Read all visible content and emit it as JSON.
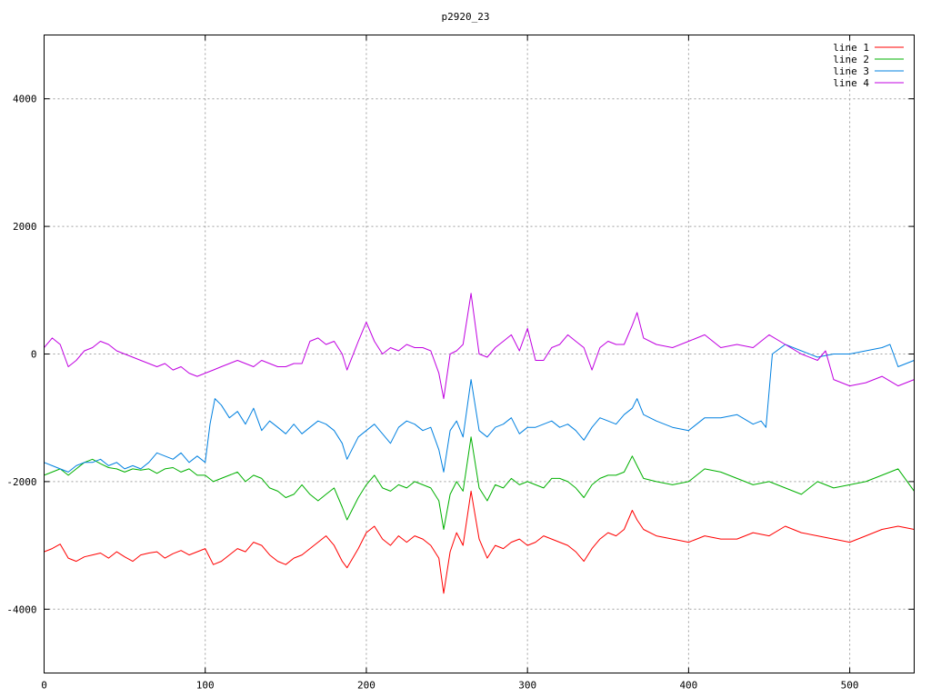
{
  "chart_data": {
    "type": "line",
    "title": "p2920_23",
    "xlabel": "",
    "ylabel": "",
    "xlim": [
      0,
      540
    ],
    "ylim": [
      -5000,
      5000
    ],
    "xticks": [
      0,
      100,
      200,
      300,
      400,
      500
    ],
    "yticks": [
      -4000,
      -2000,
      0,
      2000,
      4000
    ],
    "ytick_labels": [
      "-4000",
      "-2000",
      "0",
      "2000",
      "4000"
    ],
    "grid": true,
    "legend_position": "top-right",
    "series": [
      {
        "name": "line 1",
        "color": "#ff0000",
        "x": [
          0,
          5,
          10,
          15,
          20,
          25,
          30,
          35,
          40,
          45,
          50,
          55,
          60,
          65,
          70,
          75,
          80,
          85,
          90,
          95,
          100,
          105,
          110,
          115,
          120,
          125,
          130,
          135,
          140,
          145,
          150,
          155,
          160,
          165,
          170,
          175,
          180,
          185,
          188,
          195,
          200,
          205,
          210,
          215,
          220,
          225,
          230,
          235,
          240,
          245,
          248,
          252,
          256,
          260,
          265,
          270,
          275,
          280,
          285,
          290,
          295,
          300,
          305,
          310,
          315,
          320,
          325,
          330,
          335,
          340,
          345,
          350,
          355,
          360,
          365,
          368,
          372,
          380,
          390,
          400,
          410,
          420,
          430,
          440,
          450,
          460,
          470,
          480,
          490,
          500,
          510,
          520,
          530,
          540
        ],
        "values": [
          -3100,
          -3050,
          -2980,
          -3200,
          -3250,
          -3180,
          -3150,
          -3120,
          -3200,
          -3100,
          -3180,
          -3250,
          -3150,
          -3120,
          -3100,
          -3200,
          -3130,
          -3080,
          -3150,
          -3100,
          -3050,
          -3300,
          -3250,
          -3150,
          -3050,
          -3100,
          -2950,
          -3000,
          -3150,
          -3250,
          -3300,
          -3200,
          -3150,
          -3050,
          -2950,
          -2850,
          -3000,
          -3250,
          -3350,
          -3050,
          -2800,
          -2700,
          -2900,
          -3000,
          -2850,
          -2950,
          -2850,
          -2900,
          -3000,
          -3200,
          -3750,
          -3100,
          -2800,
          -3000,
          -2150,
          -2900,
          -3200,
          -3000,
          -3050,
          -2950,
          -2900,
          -3000,
          -2950,
          -2850,
          -2900,
          -2950,
          -3000,
          -3100,
          -3250,
          -3050,
          -2900,
          -2800,
          -2850,
          -2750,
          -2450,
          -2600,
          -2750,
          -2850,
          -2900,
          -2950,
          -2850,
          -2900,
          -2900,
          -2800,
          -2850,
          -2700,
          -2800,
          -2850,
          -2900,
          -2950,
          -2850,
          -2750,
          -2700,
          -2750
        ]
      },
      {
        "name": "line 2",
        "color": "#00b000",
        "x": [
          0,
          5,
          10,
          15,
          20,
          25,
          30,
          35,
          40,
          45,
          50,
          55,
          60,
          65,
          70,
          75,
          80,
          85,
          90,
          95,
          100,
          105,
          110,
          115,
          120,
          125,
          130,
          135,
          140,
          145,
          150,
          155,
          160,
          165,
          170,
          175,
          180,
          185,
          188,
          195,
          200,
          205,
          210,
          215,
          220,
          225,
          230,
          235,
          240,
          245,
          248,
          252,
          256,
          260,
          265,
          270,
          275,
          280,
          285,
          290,
          295,
          300,
          305,
          310,
          315,
          320,
          325,
          330,
          335,
          340,
          345,
          350,
          355,
          360,
          365,
          368,
          372,
          380,
          390,
          400,
          410,
          420,
          430,
          440,
          450,
          460,
          470,
          480,
          490,
          500,
          510,
          520,
          530,
          540
        ],
        "values": [
          -1900,
          -1850,
          -1800,
          -1900,
          -1800,
          -1700,
          -1650,
          -1720,
          -1780,
          -1800,
          -1850,
          -1800,
          -1820,
          -1800,
          -1870,
          -1800,
          -1780,
          -1850,
          -1800,
          -1900,
          -1900,
          -2000,
          -1950,
          -1900,
          -1850,
          -2000,
          -1900,
          -1950,
          -2100,
          -2150,
          -2250,
          -2200,
          -2050,
          -2200,
          -2300,
          -2200,
          -2100,
          -2400,
          -2600,
          -2250,
          -2050,
          -1900,
          -2100,
          -2150,
          -2050,
          -2100,
          -2000,
          -2050,
          -2100,
          -2300,
          -2750,
          -2200,
          -2000,
          -2150,
          -1300,
          -2100,
          -2300,
          -2050,
          -2100,
          -1950,
          -2050,
          -2000,
          -2050,
          -2100,
          -1950,
          -1950,
          -2000,
          -2100,
          -2250,
          -2050,
          -1950,
          -1900,
          -1900,
          -1850,
          -1600,
          -1750,
          -1950,
          -2000,
          -2050,
          -2000,
          -1800,
          -1850,
          -1950,
          -2050,
          -2000,
          -2100,
          -2200,
          -2000,
          -2100,
          -2050,
          -2000,
          -1900,
          -1800,
          -2150
        ]
      },
      {
        "name": "line 3",
        "color": "#0080e0",
        "x": [
          0,
          5,
          10,
          15,
          20,
          25,
          30,
          35,
          40,
          45,
          50,
          55,
          60,
          65,
          70,
          75,
          80,
          85,
          90,
          95,
          100,
          103,
          106,
          110,
          115,
          120,
          125,
          130,
          135,
          140,
          145,
          150,
          155,
          160,
          165,
          170,
          175,
          180,
          185,
          188,
          195,
          200,
          205,
          210,
          215,
          220,
          225,
          230,
          235,
          240,
          245,
          248,
          252,
          256,
          260,
          265,
          270,
          275,
          280,
          285,
          290,
          295,
          300,
          305,
          310,
          315,
          320,
          325,
          330,
          335,
          340,
          345,
          350,
          355,
          360,
          365,
          368,
          372,
          380,
          390,
          400,
          410,
          420,
          430,
          440,
          445,
          448,
          452,
          460,
          470,
          480,
          490,
          500,
          510,
          520,
          525,
          530,
          540
        ],
        "values": [
          -1700,
          -1750,
          -1800,
          -1850,
          -1750,
          -1700,
          -1700,
          -1650,
          -1750,
          -1700,
          -1800,
          -1750,
          -1800,
          -1700,
          -1550,
          -1600,
          -1650,
          -1550,
          -1700,
          -1600,
          -1700,
          -1100,
          -700,
          -800,
          -1000,
          -900,
          -1100,
          -850,
          -1200,
          -1050,
          -1150,
          -1250,
          -1100,
          -1250,
          -1150,
          -1050,
          -1100,
          -1200,
          -1400,
          -1650,
          -1300,
          -1200,
          -1100,
          -1250,
          -1400,
          -1150,
          -1050,
          -1100,
          -1200,
          -1150,
          -1500,
          -1850,
          -1200,
          -1050,
          -1300,
          -400,
          -1200,
          -1300,
          -1150,
          -1100,
          -1000,
          -1250,
          -1150,
          -1150,
          -1100,
          -1050,
          -1150,
          -1100,
          -1200,
          -1350,
          -1150,
          -1000,
          -1050,
          -1100,
          -950,
          -850,
          -700,
          -950,
          -1050,
          -1150,
          -1200,
          -1000,
          -1000,
          -950,
          -1100,
          -1050,
          -1150,
          0,
          150,
          50,
          -50,
          0,
          0,
          50,
          100,
          150,
          -200,
          -100
        ]
      },
      {
        "name": "line 4",
        "color": "#c000e0",
        "x": [
          0,
          5,
          10,
          15,
          20,
          25,
          30,
          35,
          40,
          45,
          50,
          55,
          60,
          65,
          70,
          75,
          80,
          85,
          90,
          95,
          100,
          105,
          110,
          115,
          120,
          125,
          130,
          135,
          140,
          145,
          150,
          155,
          160,
          165,
          170,
          175,
          180,
          185,
          188,
          195,
          200,
          205,
          210,
          215,
          220,
          225,
          230,
          235,
          240,
          245,
          248,
          252,
          256,
          260,
          265,
          270,
          275,
          280,
          285,
          290,
          295,
          300,
          305,
          310,
          315,
          320,
          325,
          330,
          335,
          340,
          345,
          350,
          355,
          360,
          365,
          368,
          372,
          380,
          390,
          400,
          410,
          420,
          430,
          440,
          450,
          460,
          470,
          480,
          485,
          490,
          500,
          510,
          520,
          530,
          540
        ],
        "values": [
          100,
          250,
          150,
          -200,
          -100,
          50,
          100,
          200,
          150,
          50,
          0,
          -50,
          -100,
          -150,
          -200,
          -150,
          -250,
          -200,
          -300,
          -350,
          -300,
          -250,
          -200,
          -150,
          -100,
          -150,
          -200,
          -100,
          -150,
          -200,
          -200,
          -150,
          -150,
          200,
          250,
          150,
          200,
          0,
          -250,
          200,
          500,
          200,
          0,
          100,
          50,
          150,
          100,
          100,
          50,
          -300,
          -700,
          0,
          50,
          150,
          950,
          0,
          -50,
          100,
          200,
          300,
          50,
          400,
          -100,
          -100,
          100,
          150,
          300,
          200,
          100,
          -250,
          100,
          200,
          150,
          150,
          450,
          650,
          250,
          150,
          100,
          200,
          300,
          100,
          150,
          100,
          300,
          150,
          0,
          -100,
          50,
          -400,
          -500,
          -450,
          -350,
          -500,
          -400
        ]
      }
    ]
  }
}
